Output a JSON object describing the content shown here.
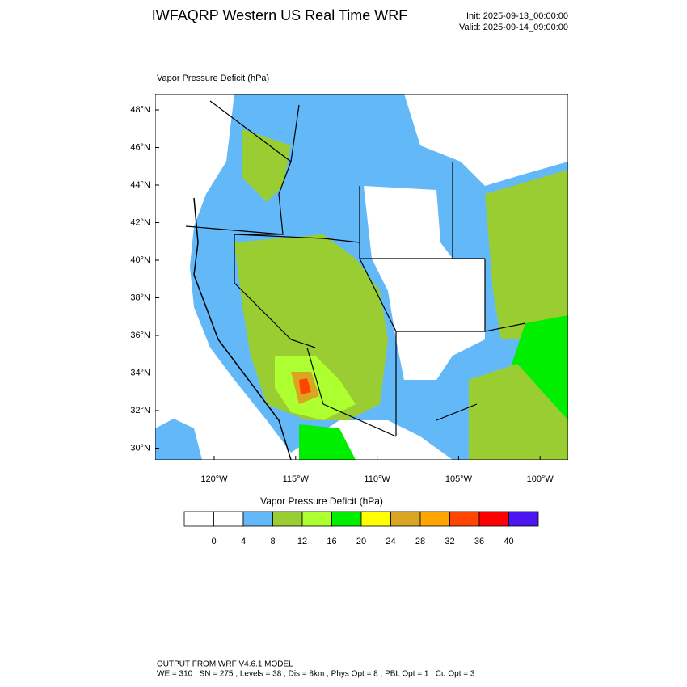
{
  "header": {
    "title": "IWFAQRP Western US Real Time WRF",
    "init": "Init: 2025-09-13_00:00:00",
    "valid": "Valid: 2025-09-14_09:00:00"
  },
  "map": {
    "label": "Vapor Pressure Deficit   (hPa)",
    "lat_labels": [
      "48°N",
      "46°N",
      "44°N",
      "42°N",
      "40°N",
      "38°N",
      "36°N",
      "34°N",
      "32°N",
      "30°N"
    ],
    "lon_labels": [
      "120°W",
      "115°W",
      "110°W",
      "105°W",
      "100°W"
    ]
  },
  "colorbar": {
    "title": "Vapor Pressure Deficit  (hPa)",
    "colors": [
      "#ffffff",
      "#ffffff",
      "#63b8f8",
      "#9acd32",
      "#adff2f",
      "#00ee00",
      "#ffff00",
      "#daa520",
      "#ffa500",
      "#ff4500",
      "#ff0000",
      "#4b14f0"
    ],
    "levels": [
      0,
      4,
      8,
      12,
      16,
      20,
      24,
      28,
      32,
      36,
      40
    ]
  },
  "footer": {
    "line1": "OUTPUT FROM WRF V4.6.1 MODEL",
    "line2": "WE = 310 ; SN = 275 ; Levels = 38 ; Dis = 8km ; Phys Opt = 8 ; PBL Opt = 1 ; Cu Opt = 3"
  }
}
